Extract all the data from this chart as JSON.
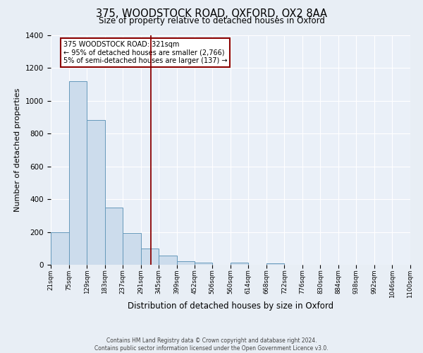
{
  "title": "375, WOODSTOCK ROAD, OXFORD, OX2 8AA",
  "subtitle": "Size of property relative to detached houses in Oxford",
  "xlabel": "Distribution of detached houses by size in Oxford",
  "ylabel": "Number of detached properties",
  "bar_color": "#ccdcec",
  "bar_edge_color": "#6699bb",
  "bin_edges": [
    21,
    75,
    129,
    183,
    237,
    291,
    345,
    399,
    452,
    506,
    560,
    614,
    668,
    722,
    776,
    830,
    884,
    938,
    992,
    1046,
    1100
  ],
  "bin_labels": [
    "21sqm",
    "75sqm",
    "129sqm",
    "183sqm",
    "237sqm",
    "291sqm",
    "345sqm",
    "399sqm",
    "452sqm",
    "506sqm",
    "560sqm",
    "614sqm",
    "668sqm",
    "722sqm",
    "776sqm",
    "830sqm",
    "884sqm",
    "938sqm",
    "992sqm",
    "1046sqm",
    "1100sqm"
  ],
  "counts": [
    200,
    1120,
    885,
    350,
    195,
    100,
    55,
    22,
    15,
    0,
    12,
    0,
    10,
    0,
    0,
    0,
    0,
    0,
    0,
    0
  ],
  "vline_x": 321,
  "vline_color": "#8b0000",
  "annotation_lines": [
    "375 WOODSTOCK ROAD: 321sqm",
    "← 95% of detached houses are smaller (2,766)",
    "5% of semi-detached houses are larger (137) →"
  ],
  "ylim": [
    0,
    1400
  ],
  "yticks": [
    0,
    200,
    400,
    600,
    800,
    1000,
    1200,
    1400
  ],
  "footer1": "Contains HM Land Registry data © Crown copyright and database right 2024.",
  "footer2": "Contains public sector information licensed under the Open Government Licence v3.0.",
  "background_color": "#e8eef5",
  "plot_bg_color": "#eaf0f8"
}
